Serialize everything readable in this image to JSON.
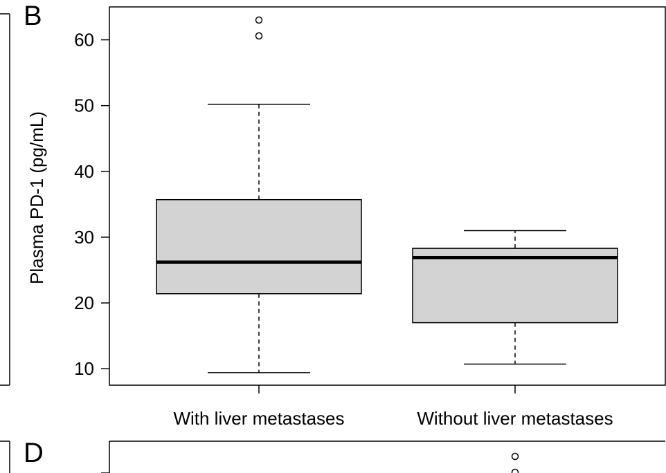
{
  "panels": {
    "b_label": "B",
    "d_label": "D"
  },
  "chart_data": [
    {
      "type": "box",
      "panel": "B",
      "ylabel": "Plasma PD-1 (pg/mL)",
      "ylim": [
        7.5,
        65
      ],
      "yticks": [
        10,
        20,
        30,
        40,
        50,
        60
      ],
      "grid": false,
      "categories": [
        "With liver metastases",
        "Without liver metastases"
      ],
      "boxes": [
        {
          "category": "With liver metastases",
          "whisker_low": 9.4,
          "q1": 21.4,
          "median": 26.2,
          "q3": 35.7,
          "whisker_high": 50.2,
          "outliers": [
            60.6,
            63.0
          ]
        },
        {
          "category": "Without liver metastases",
          "whisker_low": 10.7,
          "q1": 17.0,
          "median": 26.9,
          "q3": 28.3,
          "whisker_high": 31.0,
          "outliers": []
        }
      ],
      "colors": {
        "box_fill": "#d3d3d3",
        "line": "#000000"
      }
    },
    {
      "type": "box",
      "panel": "D",
      "partial": true,
      "colors": {
        "line": "#000000"
      }
    }
  ]
}
